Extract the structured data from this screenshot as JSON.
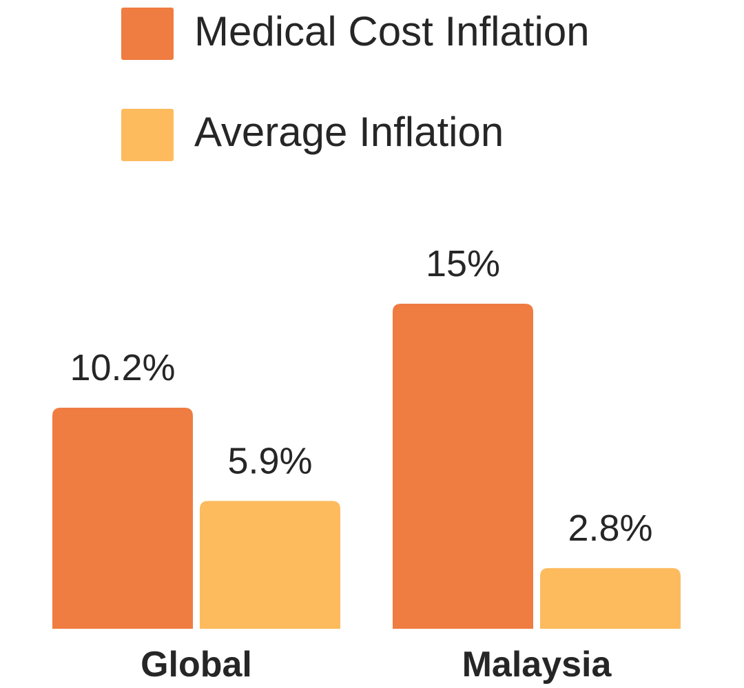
{
  "chart_data": {
    "type": "bar",
    "categories": [
      "Global",
      "Malaysia"
    ],
    "series": [
      {
        "name": "Medical Cost Inflation",
        "values": [
          10.2,
          15
        ],
        "labels": [
          "10.2%",
          "15%"
        ],
        "color": "#ef7c40"
      },
      {
        "name": "Average Inflation",
        "values": [
          5.9,
          2.8
        ],
        "labels": [
          "5.9%",
          "2.8%"
        ],
        "color": "#fdbb5e"
      }
    ],
    "title": "",
    "xlabel": "",
    "ylabel": "",
    "ylim": [
      0,
      15
    ],
    "grid": false,
    "legend_position": "top-left"
  }
}
